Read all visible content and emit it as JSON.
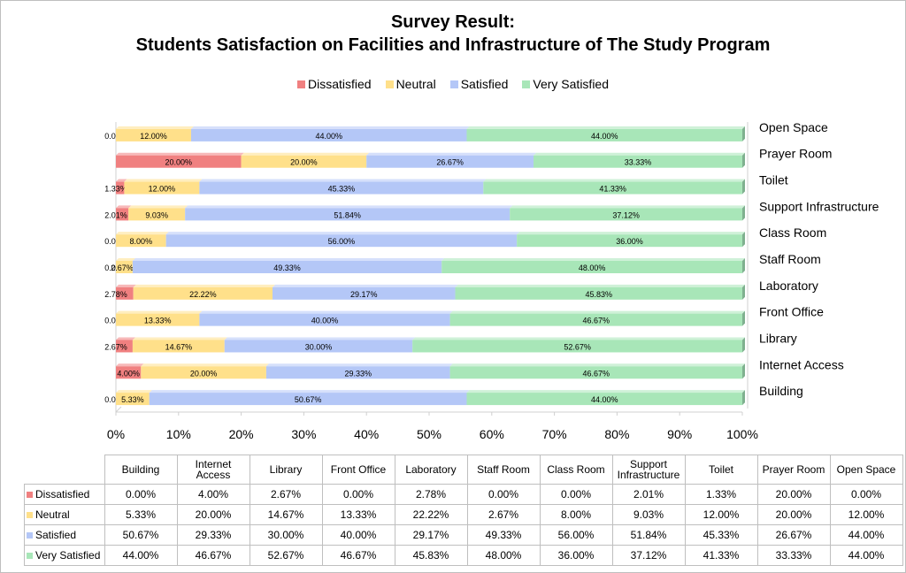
{
  "chart_data": {
    "type": "bar",
    "orientation": "horizontal",
    "stacked": "100%",
    "title": [
      "Survey Result:",
      "Students Satisfaction on Facilities and Infrastructure of The Study Program"
    ],
    "categories": [
      "Building",
      "Internet Access",
      "Library",
      "Front Office",
      "Laboratory",
      "Staff Room",
      "Class Room",
      "Support Infrastructure",
      "Toilet",
      "Prayer Room",
      "Open Space"
    ],
    "series": [
      {
        "name": "Dissatisfied",
        "color": "#f08080",
        "values": [
          0.0,
          4.0,
          2.67,
          0.0,
          2.78,
          0.0,
          0.0,
          2.01,
          1.33,
          20.0,
          0.0
        ]
      },
      {
        "name": "Neutral",
        "color": "#ffe08a",
        "values": [
          5.33,
          20.0,
          14.67,
          13.33,
          22.22,
          2.67,
          8.0,
          9.03,
          12.0,
          20.0,
          12.0
        ]
      },
      {
        "name": "Satisfied",
        "color": "#b4c7f7",
        "values": [
          50.67,
          29.33,
          30.0,
          40.0,
          29.17,
          49.33,
          56.0,
          51.84,
          45.33,
          26.67,
          44.0
        ]
      },
      {
        "name": "Very Satisfied",
        "color": "#a8e6b8",
        "values": [
          44.0,
          46.67,
          52.67,
          46.67,
          45.83,
          48.0,
          36.0,
          37.12,
          41.33,
          33.33,
          44.0
        ]
      }
    ],
    "value_labels": [
      [
        "0.00%",
        "4.00%",
        "2.67%",
        "0.00%",
        "2.78%",
        "0.00%",
        "0.00%",
        "2.01%",
        "1.33%",
        "20.00%",
        "0.00%"
      ],
      [
        "5.33%",
        "20.00%",
        "14.67%",
        "13.33%",
        "22.22%",
        "2.67%",
        "8.00%",
        "9.03%",
        "12.00%",
        "20.00%",
        "12.00%"
      ],
      [
        "50.67%",
        "29.33%",
        "30.00%",
        "40.00%",
        "29.17%",
        "49.33%",
        "56.00%",
        "51.84%",
        "45.33%",
        "26.67%",
        "44.00%"
      ],
      [
        "44.00%",
        "46.67%",
        "52.67%",
        "46.67%",
        "45.83%",
        "48.00%",
        "36.00%",
        "37.12%",
        "41.33%",
        "33.33%",
        "44.00%"
      ]
    ],
    "x_ticks": [
      "0%",
      "10%",
      "20%",
      "30%",
      "40%",
      "50%",
      "60%",
      "70%",
      "80%",
      "90%",
      "100%"
    ],
    "xlim": [
      0,
      100
    ],
    "legend_position": "top",
    "table_headers": [
      "Building",
      "Internet Access",
      "Library",
      "Front Office",
      "Laboratory",
      "Staff Room",
      "Class Room",
      "Support Infrastructure",
      "Toilet",
      "Prayer Room",
      "Open Space"
    ]
  }
}
